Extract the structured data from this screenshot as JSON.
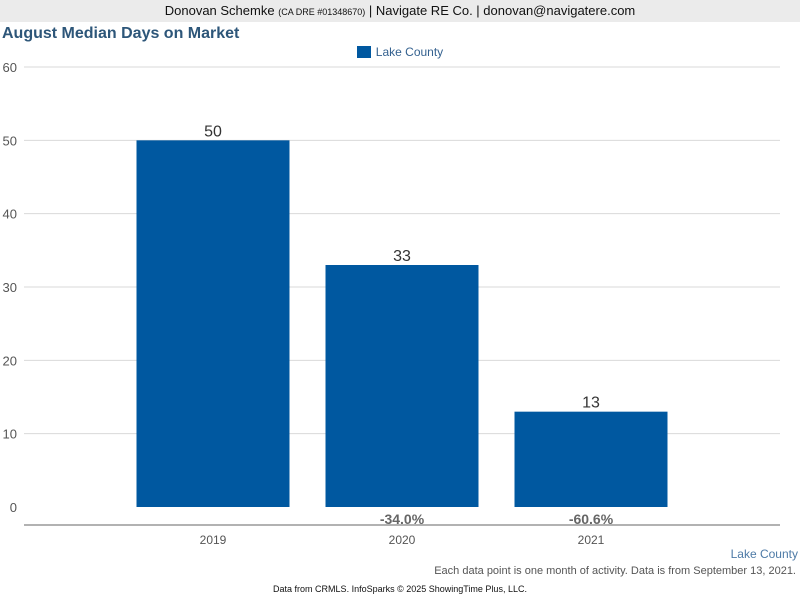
{
  "header": {
    "agent_name": "Donovan Schemke",
    "license": "(CA DRE #01348670)",
    "company": "| Navigate RE Co. | donovan@navigatere.com"
  },
  "chart_data": {
    "type": "bar",
    "title": "August Median Days on Market",
    "categories": [
      "2019",
      "2020",
      "2021"
    ],
    "series": [
      {
        "name": "Lake County",
        "values": [
          50,
          33,
          13
        ]
      }
    ],
    "value_labels": [
      "50",
      "33",
      "13"
    ],
    "change_labels": [
      "",
      "-34.0%",
      "-60.6%"
    ],
    "ylim": [
      0,
      60
    ],
    "yticks": [
      0,
      10,
      20,
      30,
      40,
      50,
      60
    ],
    "grid": true,
    "legend_position": "top-center",
    "bar_color": "#0058a0"
  },
  "region_label": "Lake County",
  "note": "Each data point is one month of activity. Data is from September 13, 2021.",
  "footer": "Data from CRMLS. InfoSparks © 2025 ShowingTime Plus, LLC."
}
